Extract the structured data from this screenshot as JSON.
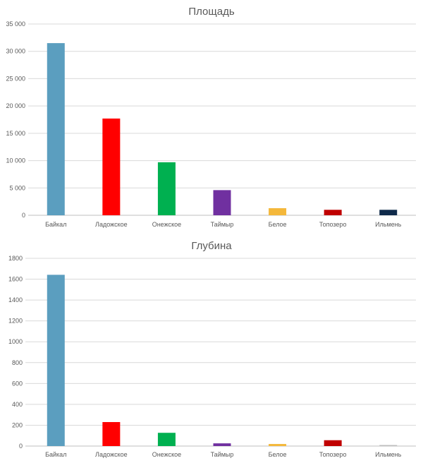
{
  "chart_data": [
    {
      "type": "bar",
      "title": "Площадь",
      "xlabel": "",
      "ylabel": "",
      "categories": [
        "Байкал",
        "Ладожское",
        "Онежское",
        "Таймыр",
        "Белое",
        "Топозеро",
        "Ильмень"
      ],
      "values": [
        31500,
        17700,
        9700,
        4600,
        1300,
        1000,
        1000
      ],
      "colors": [
        "#5b9ebf",
        "#ff0000",
        "#00b050",
        "#7030a0",
        "#f4b83b",
        "#c00000",
        "#0f2a4a"
      ],
      "ylim": [
        0,
        35000
      ],
      "yticks": [
        0,
        5000,
        10000,
        15000,
        20000,
        25000,
        30000,
        35000
      ],
      "ytick_labels": [
        "0",
        "5 000",
        "10 000",
        "15 000",
        "20 000",
        "25 000",
        "30 000",
        "35 000"
      ],
      "grid": true
    },
    {
      "type": "bar",
      "title": "Глубина",
      "xlabel": "",
      "ylabel": "",
      "categories": [
        "Байкал",
        "Ладожское",
        "Онежское",
        "Таймыр",
        "Белое",
        "Топозеро",
        "Ильмень"
      ],
      "values": [
        1642,
        230,
        127,
        26,
        20,
        56,
        10
      ],
      "colors": [
        "#5b9ebf",
        "#ff0000",
        "#00b050",
        "#7030a0",
        "#f4b83b",
        "#c00000",
        "#bfbfbf"
      ],
      "ylim": [
        0,
        1800
      ],
      "yticks": [
        0,
        200,
        400,
        600,
        800,
        1000,
        1200,
        1400,
        1600,
        1800
      ],
      "ytick_labels": [
        "0",
        "200",
        "400",
        "600",
        "800",
        "1000",
        "1200",
        "1400",
        "1600",
        "1800"
      ],
      "grid": true
    }
  ]
}
